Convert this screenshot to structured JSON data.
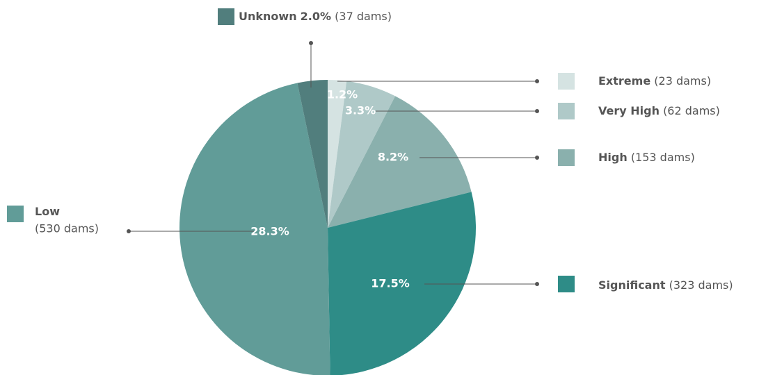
{
  "chart_data": {
    "type": "pie",
    "categories": [
      "Extreme",
      "Very High",
      "High",
      "Significant",
      "Low",
      "Unknown"
    ],
    "values": [
      23,
      62,
      153,
      323,
      530,
      37
    ],
    "value_labels": [
      "(23 dams)",
      "(62 dams)",
      "(153 dams)",
      "(323 dams)",
      "(530 dams)",
      "(37 dams)"
    ],
    "percent_labels": [
      "1.2%",
      "3.3%",
      "8.2%",
      "17.5%",
      "28.3%",
      "2.0%"
    ],
    "colors": [
      "#d5e3e2",
      "#afc9c8",
      "#8ab0ad",
      "#2e8c87",
      "#619c98",
      "#517e7d"
    ]
  }
}
